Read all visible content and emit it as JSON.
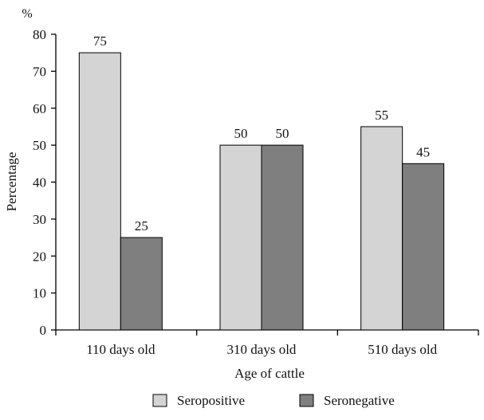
{
  "chart_data": {
    "type": "bar",
    "title": "",
    "xlabel": "Age of cattle",
    "ylabel": "Percentage",
    "yunit": "%",
    "ylim": [
      0,
      80
    ],
    "yticks": [
      0,
      10,
      20,
      30,
      40,
      50,
      60,
      70,
      80
    ],
    "categories": [
      "110 days old",
      "310 days old",
      "510 days old"
    ],
    "series": [
      {
        "name": "Seropositive",
        "values": [
          75,
          50,
          55
        ],
        "color": "#d4d4d4"
      },
      {
        "name": "Seronegative",
        "values": [
          25,
          50,
          45
        ],
        "color": "#7f7f7f"
      }
    ],
    "data_labels": [
      [
        "75",
        "50",
        "55"
      ],
      [
        "25",
        "50",
        "45"
      ]
    ],
    "grid": false,
    "legend_position": "bottom"
  }
}
